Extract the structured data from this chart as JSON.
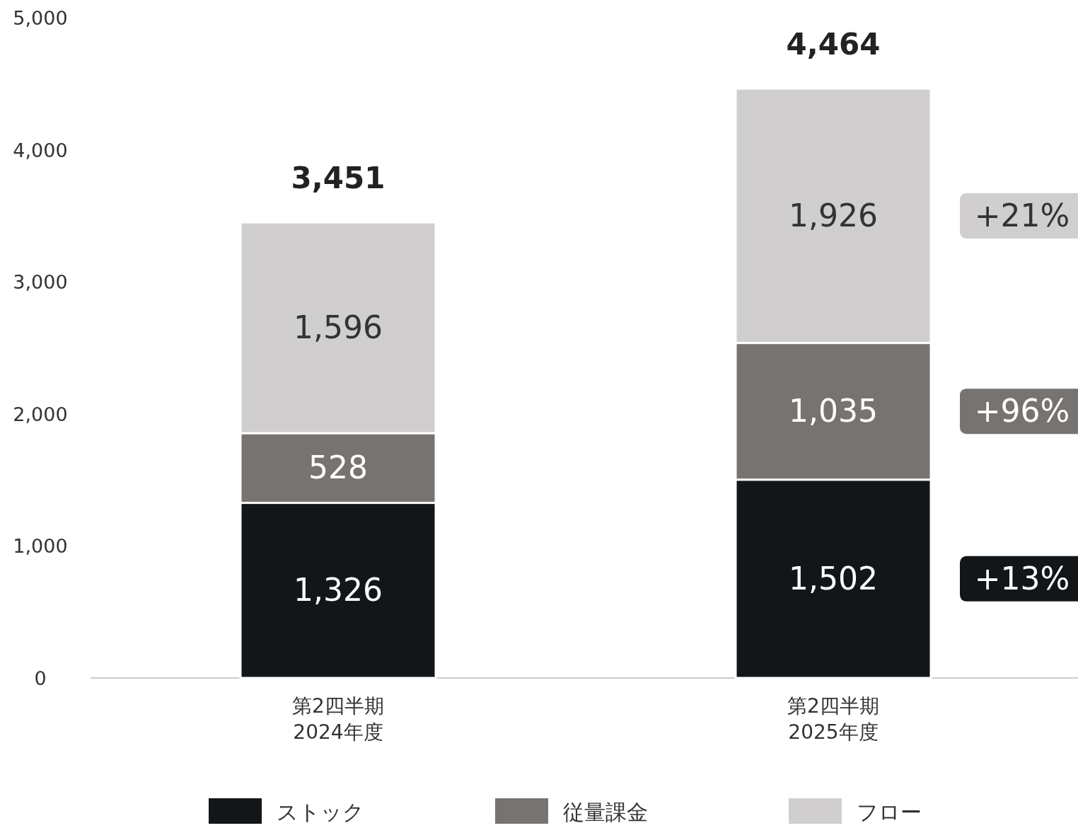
{
  "chart_data": {
    "type": "bar",
    "stacked": true,
    "categories": [
      "第2四半期 2024年度",
      "第2四半期 2025年度"
    ],
    "series": [
      {
        "name": "ストック",
        "color": "#131619",
        "values": [
          1326,
          1502
        ],
        "value_labels": [
          "1,326",
          "1,502"
        ]
      },
      {
        "name": "従量課金",
        "color": "#777371",
        "values": [
          528,
          1035
        ],
        "value_labels": [
          "528",
          "1,035"
        ]
      },
      {
        "name": "フロー",
        "color": "#d0cecf",
        "values": [
          1596,
          1926
        ],
        "value_labels": [
          "1,596",
          "1,926"
        ]
      }
    ],
    "ylim": [
      0,
      5000
    ],
    "yticks": [
      0,
      {
        "value": 1000,
        "label": "1,000"
      },
      {
        "value": 2000,
        "label": "2,000"
      },
      {
        "value": 3000,
        "label": "3,000"
      },
      {
        "value": 4000,
        "label": "4,000"
      },
      {
        "value": 5000,
        "label": "5,000"
      }
    ],
    "totals": [
      "3,451",
      "4,464"
    ],
    "annotations": [
      "+13%",
      "+96%",
      "+21%"
    ],
    "legend": "bottom"
  }
}
